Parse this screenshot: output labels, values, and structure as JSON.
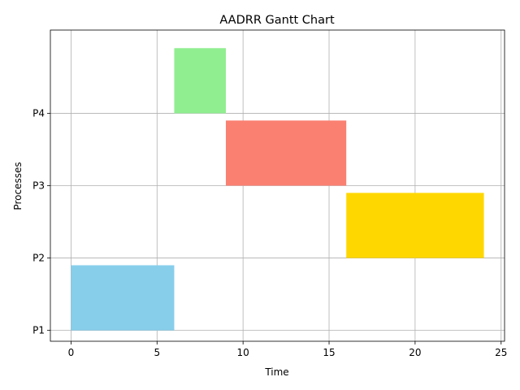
{
  "chart_data": {
    "type": "bar",
    "orientation": "horizontal-gantt",
    "title": "AADRR Gantt Chart",
    "xlabel": "Time",
    "ylabel": "Processes",
    "xlim": [
      -1.2,
      25.2
    ],
    "ylim": [
      0.85,
      5.15
    ],
    "xticks": [
      0,
      5,
      10,
      15,
      20,
      25
    ],
    "yticks": [
      {
        "label": "P1",
        "value": 1
      },
      {
        "label": "P2",
        "value": 2
      },
      {
        "label": "P3",
        "value": 3
      },
      {
        "label": "P4",
        "value": 4
      }
    ],
    "grid": true,
    "tasks": [
      {
        "process": "P1",
        "y": 1,
        "start": 0,
        "end": 6,
        "color": "#87CEEB"
      },
      {
        "process": "P2",
        "y": 2,
        "start": 16,
        "end": 24,
        "color": "#FFD700"
      },
      {
        "process": "P3",
        "y": 3,
        "start": 9,
        "end": 16,
        "color": "#FA8072"
      },
      {
        "process": "P4",
        "y": 4,
        "start": 6,
        "end": 9,
        "color": "#90EE90"
      }
    ]
  }
}
